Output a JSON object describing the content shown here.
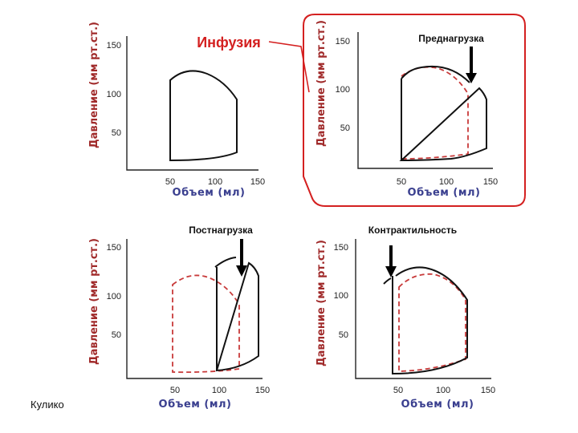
{
  "axis_labels": {
    "y": "Давление (мм рт.ст.)",
    "x": "Объем (мл)"
  },
  "ticks": {
    "y": [
      "150",
      "100",
      "50"
    ],
    "x": [
      "50",
      "100",
      "150"
    ]
  },
  "annotations": {
    "infusion": "Инфузия",
    "preload": "Преднагрузка",
    "afterload": "Постнагрузка",
    "contractility": "Контрактильность"
  },
  "author": "Кулико",
  "colors": {
    "highlight_red": "#d42020",
    "dashed_curve": "#c83a3a",
    "axis_label_blue": "#3a3f8f",
    "axis_label_red": "#a02a2a"
  }
}
